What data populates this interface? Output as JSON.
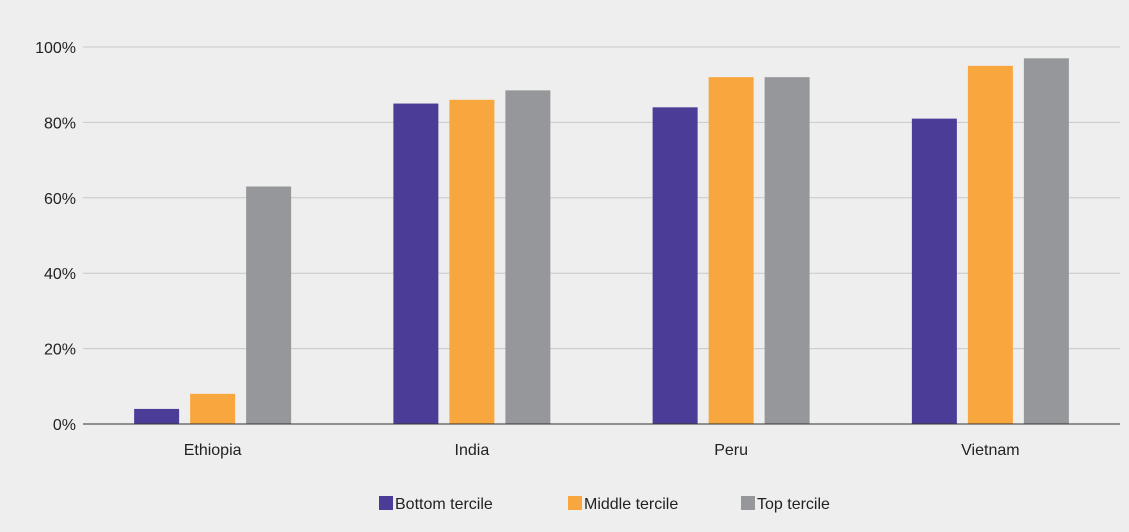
{
  "chart_data": {
    "type": "bar",
    "categories": [
      "Ethiopia",
      "India",
      "Peru",
      "Vietnam"
    ],
    "series": [
      {
        "name": "Bottom tercile",
        "color": "#4b3c97",
        "values": [
          4,
          85,
          84,
          81
        ]
      },
      {
        "name": "Middle tercile",
        "color": "#f7a73d",
        "values": [
          8,
          86,
          92,
          95
        ]
      },
      {
        "name": "Top tercile",
        "color": "#96979b",
        "values": [
          63,
          88.5,
          92,
          97
        ]
      }
    ],
    "yticks": [
      "0%",
      "20%",
      "40%",
      "60%",
      "80%",
      "100%"
    ],
    "ylim": [
      0,
      100
    ],
    "grid": true,
    "legend_position": "bottom-center",
    "background": "#eeeeee"
  }
}
